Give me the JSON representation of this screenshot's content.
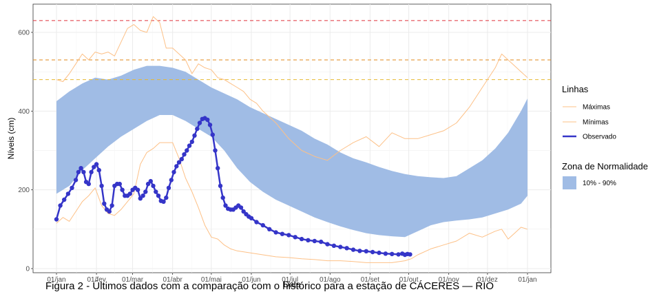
{
  "caption": "Figura 2 - Últimos dados com a comparação com o histórico para a estação de CÁCERES — RIO",
  "chart_data": {
    "type": "line",
    "xlabel": "Data",
    "ylabel": "Níveis (cm)",
    "xlim": [
      0,
      365
    ],
    "ylim": [
      0,
      645
    ],
    "x_ticks": [
      {
        "x": 0,
        "label": "01/jan"
      },
      {
        "x": 31,
        "label": "01/fev"
      },
      {
        "x": 59,
        "label": "01/mar"
      },
      {
        "x": 90,
        "label": "01/abr"
      },
      {
        "x": 120,
        "label": "01/mai"
      },
      {
        "x": 151,
        "label": "01/jun"
      },
      {
        "x": 181,
        "label": "01/jul"
      },
      {
        "x": 212,
        "label": "01/ago"
      },
      {
        "x": 243,
        "label": "01/set"
      },
      {
        "x": 273,
        "label": "01/out"
      },
      {
        "x": 304,
        "label": "01/nov"
      },
      {
        "x": 334,
        "label": "01/dez"
      },
      {
        "x": 365,
        "label": "01/jan"
      }
    ],
    "y_ticks": [
      0,
      200,
      400,
      600
    ],
    "grid": true,
    "legend_placement": "right",
    "legend_groups": [
      {
        "title": "Linhas",
        "entries": [
          {
            "label": "Máximas",
            "color": "#fdc086",
            "kind": "line"
          },
          {
            "label": "Mínimas",
            "color": "#fdc086",
            "kind": "line"
          },
          {
            "label": "Observado",
            "color": "#3535c8",
            "kind": "thickline"
          }
        ]
      },
      {
        "title": "Zona de Normalidade",
        "entries": [
          {
            "label": "10% - 90%",
            "color": "#a0bce5",
            "kind": "rect"
          }
        ]
      }
    ],
    "reference_lines": [
      {
        "y": 630,
        "color": "#e0303a"
      },
      {
        "y": 530,
        "color": "#e08a1a"
      },
      {
        "y": 480,
        "color": "#e8b830"
      }
    ],
    "band_10_90": {
      "color": "#a0bce5",
      "x": [
        0,
        10,
        20,
        30,
        40,
        50,
        60,
        70,
        80,
        90,
        100,
        110,
        120,
        130,
        140,
        150,
        160,
        170,
        180,
        190,
        200,
        210,
        220,
        230,
        240,
        250,
        260,
        270,
        280,
        290,
        300,
        310,
        320,
        330,
        340,
        350,
        360,
        365
      ],
      "upper": [
        425,
        450,
        470,
        485,
        480,
        490,
        505,
        515,
        515,
        510,
        500,
        480,
        460,
        445,
        430,
        410,
        395,
        380,
        365,
        350,
        330,
        315,
        295,
        280,
        270,
        258,
        248,
        240,
        235,
        232,
        230,
        235,
        255,
        275,
        305,
        345,
        400,
        432
      ],
      "lower": [
        190,
        210,
        250,
        280,
        310,
        335,
        355,
        375,
        390,
        390,
        375,
        355,
        335,
        300,
        255,
        220,
        195,
        175,
        160,
        145,
        130,
        118,
        107,
        98,
        90,
        85,
        82,
        80,
        95,
        110,
        118,
        122,
        125,
        130,
        140,
        150,
        165,
        185
      ]
    },
    "series": [
      {
        "name": "Máximas",
        "color": "#fdc086",
        "x": [
          0,
          5,
          10,
          15,
          20,
          25,
          30,
          35,
          40,
          45,
          50,
          55,
          60,
          65,
          70,
          75,
          80,
          85,
          90,
          95,
          100,
          105,
          110,
          115,
          120,
          125,
          130,
          135,
          140,
          145,
          150,
          155,
          160,
          170,
          180,
          190,
          200,
          210,
          220,
          230,
          240,
          250,
          260,
          270,
          280,
          290,
          300,
          310,
          320,
          330,
          340,
          345,
          350,
          355,
          360,
          365
        ],
        "y": [
          480,
          475,
          495,
          520,
          545,
          530,
          550,
          545,
          550,
          540,
          575,
          610,
          620,
          605,
          600,
          640,
          625,
          560,
          560,
          545,
          530,
          495,
          520,
          510,
          505,
          485,
          480,
          470,
          460,
          450,
          430,
          420,
          400,
          370,
          330,
          300,
          285,
          275,
          300,
          320,
          335,
          310,
          345,
          330,
          330,
          340,
          350,
          370,
          410,
          460,
          510,
          545,
          530,
          515,
          500,
          485
        ]
      },
      {
        "name": "Mínimas",
        "color": "#fdc086",
        "x": [
          0,
          5,
          10,
          15,
          20,
          25,
          30,
          35,
          40,
          45,
          50,
          55,
          60,
          65,
          70,
          75,
          80,
          85,
          90,
          95,
          100,
          105,
          110,
          115,
          120,
          125,
          130,
          135,
          140,
          150,
          160,
          170,
          180,
          190,
          200,
          210,
          220,
          230,
          240,
          250,
          260,
          270,
          275,
          280,
          290,
          300,
          310,
          320,
          330,
          340,
          345,
          350,
          355,
          360,
          365
        ],
        "y": [
          115,
          130,
          120,
          145,
          170,
          185,
          205,
          160,
          140,
          135,
          150,
          170,
          190,
          265,
          295,
          305,
          320,
          320,
          320,
          280,
          230,
          195,
          155,
          110,
          80,
          75,
          60,
          50,
          45,
          40,
          35,
          30,
          28,
          25,
          23,
          20,
          20,
          18,
          15,
          15,
          15,
          20,
          25,
          35,
          50,
          60,
          70,
          90,
          80,
          95,
          100,
          75,
          90,
          105,
          100
        ]
      },
      {
        "name": "Observado",
        "color": "#3535c8",
        "x": [
          0,
          3,
          6,
          9,
          12,
          15,
          17,
          19,
          21,
          23,
          25,
          27,
          29,
          31,
          33,
          35,
          37,
          39,
          41,
          43,
          45,
          47,
          49,
          51,
          53,
          55,
          57,
          59,
          61,
          63,
          65,
          67,
          69,
          71,
          73,
          75,
          77,
          79,
          81,
          83,
          85,
          87,
          89,
          91,
          93,
          95,
          97,
          99,
          101,
          103,
          105,
          107,
          109,
          111,
          113,
          115,
          117,
          119,
          121,
          123,
          125,
          127,
          129,
          131,
          133,
          135,
          137,
          139,
          141,
          143,
          145,
          147,
          149,
          151,
          155,
          160,
          165,
          170,
          175,
          180,
          185,
          190,
          195,
          200,
          205,
          210,
          215,
          220,
          225,
          230,
          235,
          240,
          245,
          250,
          255,
          260,
          265,
          268,
          270,
          272,
          274
        ],
        "y": [
          125,
          160,
          175,
          190,
          205,
          225,
          245,
          255,
          245,
          220,
          215,
          245,
          258,
          265,
          250,
          210,
          165,
          150,
          145,
          160,
          210,
          215,
          215,
          200,
          185,
          185,
          190,
          200,
          205,
          200,
          178,
          185,
          195,
          215,
          222,
          210,
          195,
          185,
          172,
          170,
          180,
          205,
          225,
          245,
          260,
          270,
          278,
          290,
          300,
          312,
          322,
          338,
          355,
          370,
          380,
          382,
          378,
          365,
          340,
          300,
          255,
          210,
          180,
          160,
          152,
          150,
          150,
          155,
          160,
          155,
          145,
          138,
          132,
          128,
          118,
          110,
          100,
          92,
          88,
          85,
          80,
          75,
          72,
          70,
          68,
          62,
          58,
          55,
          52,
          48,
          45,
          44,
          42,
          40,
          38,
          37,
          36,
          38,
          35,
          37,
          36
        ]
      }
    ]
  }
}
